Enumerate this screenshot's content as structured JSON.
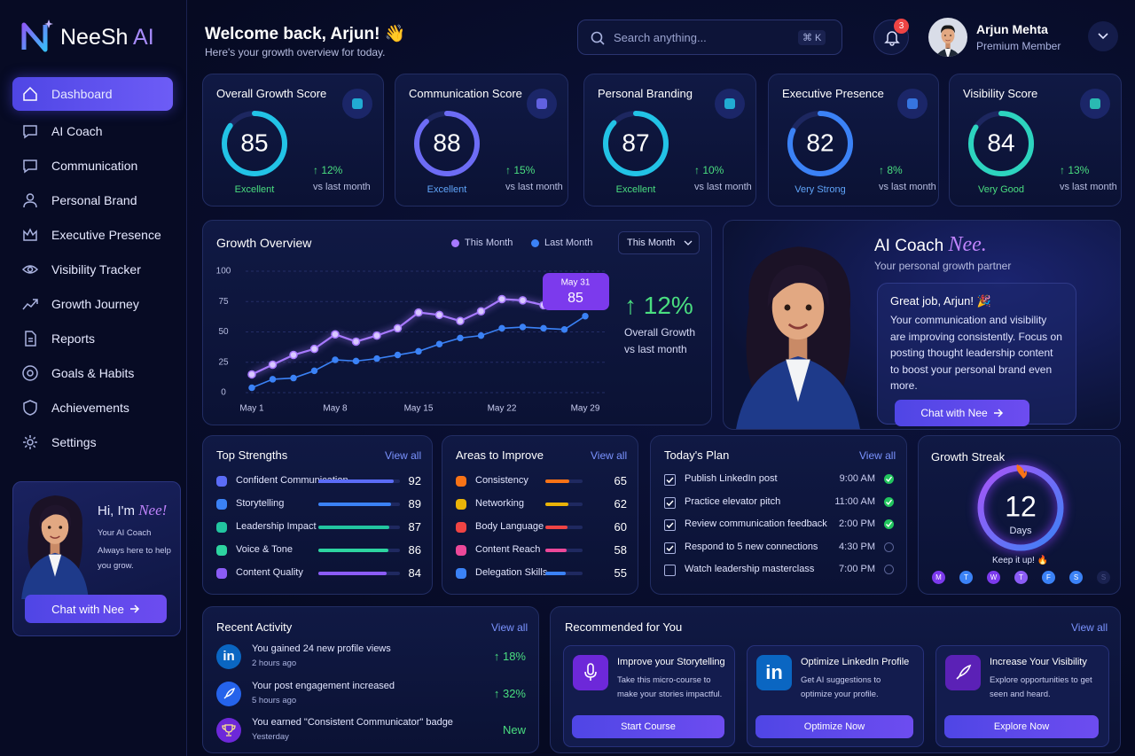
{
  "brand": {
    "name_a": "NeeSh",
    "name_b": "AI"
  },
  "sidebar": {
    "nav": [
      "Dashboard",
      "AI Coach",
      "Communication",
      "Personal Brand",
      "Executive Presence",
      "Visibility Tracker",
      "Growth Journey",
      "Reports",
      "Goals & Habits",
      "Achievements",
      "Settings"
    ],
    "promo": {
      "greeting": "Hi, I'm",
      "name": "Nee!",
      "role": "Your AI Coach",
      "text": "Always here to help you grow.",
      "button": "Chat with Nee"
    }
  },
  "header": {
    "welcome": "Welcome back, Arjun! 👋",
    "subtitle": "Here's your growth overview for today.",
    "search_placeholder": "Search anything...",
    "shortcut": "⌘ K",
    "notifications": 3,
    "user_name": "Arjun Mehta",
    "user_role": "Premium Member"
  },
  "score_cards": [
    {
      "title": "Overall Growth Score",
      "score": 85,
      "rating": "Excellent",
      "change": "↑ 12%",
      "change_note": "vs last month",
      "color": "#22c3e6",
      "rating_color": "#4ade80"
    },
    {
      "title": "Communication Score",
      "score": 88,
      "rating": "Excellent",
      "change": "↑ 15%",
      "change_note": "vs last month",
      "color": "#6d6cf5",
      "rating_color": "#60a5fa"
    },
    {
      "title": "Personal Branding",
      "score": 87,
      "rating": "Excellent",
      "change": "↑ 10%",
      "change_note": "vs last month",
      "color": "#22c3e6",
      "rating_color": "#4ade80"
    },
    {
      "title": "Executive Presence",
      "score": 82,
      "rating": "Very Strong",
      "change": "↑ 8%",
      "change_note": "vs last month",
      "color": "#3b82f6",
      "rating_color": "#60a5fa"
    },
    {
      "title": "Visibility Score",
      "score": 84,
      "rating": "Very Good",
      "change": "↑ 13%",
      "change_note": "vs last month",
      "color": "#2dd4bf",
      "rating_color": "#4ade80"
    }
  ],
  "chart_data": {
    "type": "line",
    "title": "Growth Overview",
    "categories": [
      "May 1",
      null,
      null,
      null,
      "May 8",
      null,
      null,
      null,
      "May 15",
      null,
      null,
      null,
      "May 22",
      null,
      null,
      null,
      "May 29"
    ],
    "series": [
      {
        "name": "This Month",
        "color": "#a779ff",
        "values": [
          15,
          23,
          31,
          36,
          48,
          42,
          47,
          53,
          66,
          64,
          59,
          67,
          77,
          76,
          72,
          82,
          null
        ]
      },
      {
        "name": "Last Month",
        "color": "#3b82f6",
        "values": [
          4,
          11,
          12,
          18,
          27,
          26,
          28,
          31,
          34,
          40,
          45,
          47,
          53,
          54,
          53,
          52,
          63
        ]
      }
    ],
    "ylim": [
      0,
      100
    ],
    "yticks": [
      0,
      25,
      50,
      75,
      100
    ],
    "grid": true,
    "dropdown": "This Month",
    "tooltip": {
      "date": "May 31",
      "value": 85
    },
    "summary": {
      "change": "↑ 12%",
      "label": "Overall Growth",
      "note": "vs last month"
    }
  },
  "ai_coach": {
    "title": "AI Coach",
    "name": "Nee.",
    "subtitle": "Your personal growth partner",
    "message_title": "Great job, Arjun! 🎉",
    "message": "Your communication and visibility are improving consistently. Focus on posting thought leadership content to boost your personal brand even more.",
    "button": "Chat with Nee"
  },
  "top_strengths": {
    "title": "Top Strengths",
    "link": "View all",
    "items": [
      {
        "label": "Confident Communication",
        "value": 92,
        "color": "#5b6cf7"
      },
      {
        "label": "Storytelling",
        "value": 89,
        "color": "#3b82f6"
      },
      {
        "label": "Leadership Impact",
        "value": 87,
        "color": "#22c5a0"
      },
      {
        "label": "Voice & Tone",
        "value": 86,
        "color": "#2dd4a0"
      },
      {
        "label": "Content Quality",
        "value": 84,
        "color": "#8b5cf6"
      }
    ]
  },
  "areas_to_improve": {
    "title": "Areas to Improve",
    "link": "View all",
    "items": [
      {
        "label": "Consistency",
        "value": 65,
        "color": "#f97316"
      },
      {
        "label": "Networking",
        "value": 62,
        "color": "#eab308"
      },
      {
        "label": "Body Language",
        "value": 60,
        "color": "#ef4444"
      },
      {
        "label": "Content Reach",
        "value": 58,
        "color": "#ec4899"
      },
      {
        "label": "Delegation Skills",
        "value": 55,
        "color": "#3b82f6"
      }
    ]
  },
  "todays_plan": {
    "title": "Today's Plan",
    "link": "View all",
    "items": [
      {
        "task": "Publish LinkedIn post",
        "time": "9:00 AM",
        "checked": true,
        "completed": true
      },
      {
        "task": "Practice elevator pitch",
        "time": "11:00 AM",
        "checked": true,
        "completed": true
      },
      {
        "task": "Review communication feedback",
        "time": "2:00 PM",
        "checked": true,
        "completed": true
      },
      {
        "task": "Respond to 5 new connections",
        "time": "4:30 PM",
        "checked": true,
        "completed": false
      },
      {
        "task": "Watch leadership masterclass",
        "time": "7:00 PM",
        "checked": false,
        "completed": false
      }
    ]
  },
  "growth_streak": {
    "title": "Growth Streak",
    "days": 12,
    "unit": "Days",
    "note": "Keep it up! 🔥",
    "weekdays": [
      "M",
      "T",
      "W",
      "T",
      "F",
      "S",
      "S"
    ],
    "active": [
      true,
      true,
      true,
      true,
      true,
      true,
      false
    ]
  },
  "recent_activity": {
    "title": "Recent Activity",
    "link": "View all",
    "items": [
      {
        "icon_label": "in",
        "text": "You gained 24 new profile views",
        "time": "2 hours ago",
        "change": "↑ 18%"
      },
      {
        "text": "Your post engagement increased",
        "time": "5 hours ago",
        "change": "↑ 32%"
      },
      {
        "text": "You earned \"Consistent Communicator\" badge",
        "time": "Yesterday",
        "change": "New"
      }
    ]
  },
  "recommended": {
    "title": "Recommended for You",
    "link": "View all",
    "items": [
      {
        "title": "Improve your Storytelling",
        "text": "Take this micro-course to make your stories impactful.",
        "button": "Start Course"
      },
      {
        "icon_label": "in",
        "title": "Optimize LinkedIn Profile",
        "text": "Get AI suggestions to optimize your profile.",
        "button": "Optimize Now"
      },
      {
        "title": "Increase Your Visibility",
        "text": "Explore opportunities to get seen and heard.",
        "button": "Explore Now"
      }
    ]
  }
}
